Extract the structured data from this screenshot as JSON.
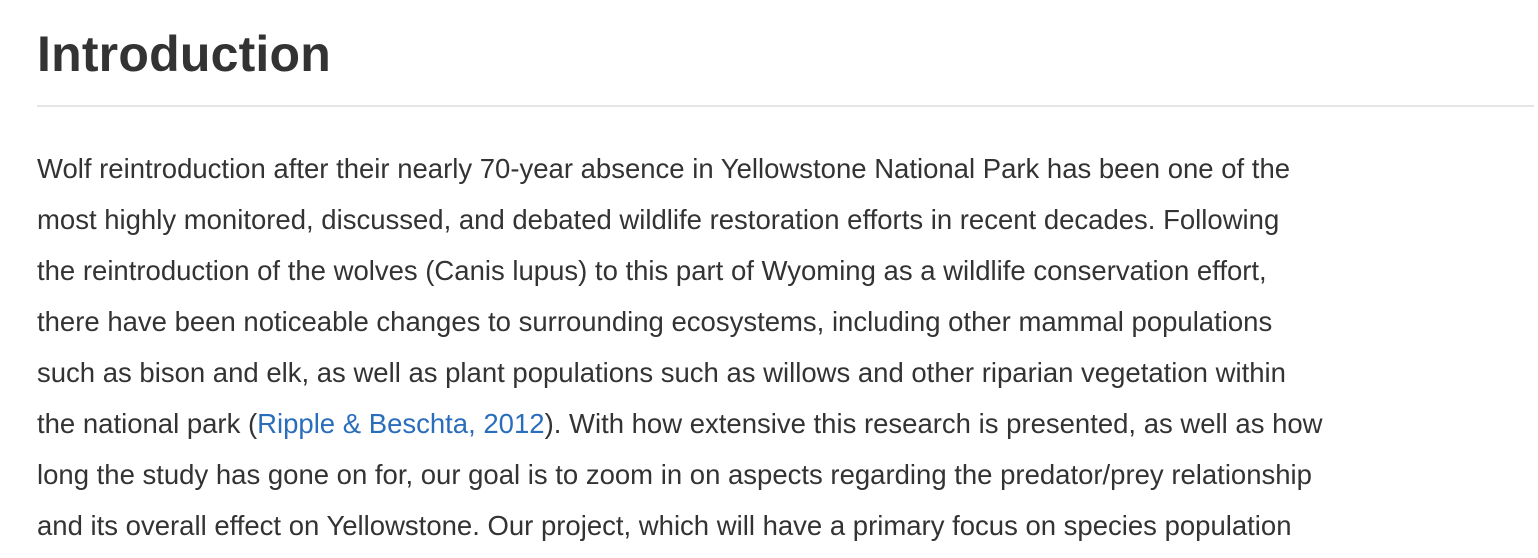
{
  "heading": {
    "title": "Introduction"
  },
  "paragraph": {
    "line1": "Wolf reintroduction after their nearly 70-year absence in Yellowstone National Park has been one of the",
    "line2": "most highly monitored, discussed, and debated wildlife restoration efforts in recent decades. Following",
    "line3": "the reintroduction of the wolves (Canis lupus) to this part of Wyoming as a wildlife conservation effort,",
    "line4": "there have been noticeable changes to surrounding ecosystems, including other mammal populations",
    "line5": "such as bison and elk, as well as plant populations such as willows and other riparian vegetation within",
    "line6_before": "the national park (",
    "citation_link": "Ripple & Beschta, 2012",
    "line6_after": "). With how extensive this research is presented, as well as how",
    "line7": "long the study has gone on for, our goal is to zoom in on aspects regarding the predator/prey relationship",
    "line8": "and its overall effect on Yellowstone. Our project, which will have a primary focus on species population"
  },
  "colors": {
    "text": "#333333",
    "link": "#2a6ebb",
    "divider": "#e5e5e5"
  }
}
